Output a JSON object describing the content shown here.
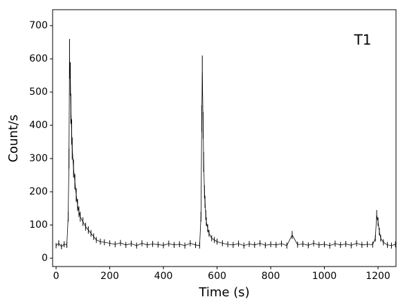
{
  "chart_data": {
    "type": "errorbar",
    "annotation": "T1",
    "xlabel": "Time (s)",
    "ylabel": "Count/s",
    "x": [
      0,
      10,
      20,
      30,
      40,
      45,
      48,
      50,
      53,
      55,
      58,
      60,
      65,
      70,
      75,
      80,
      85,
      90,
      100,
      110,
      120,
      130,
      140,
      150,
      165,
      180,
      200,
      220,
      240,
      260,
      280,
      300,
      320,
      340,
      360,
      380,
      400,
      420,
      440,
      460,
      480,
      500,
      520,
      535,
      540,
      543,
      545,
      548,
      550,
      553,
      555,
      558,
      560,
      565,
      570,
      580,
      590,
      600,
      620,
      640,
      660,
      680,
      700,
      720,
      740,
      760,
      780,
      800,
      820,
      840,
      860,
      880,
      900,
      920,
      940,
      960,
      980,
      1000,
      1020,
      1040,
      1060,
      1080,
      1100,
      1120,
      1140,
      1160,
      1180,
      1190,
      1195,
      1200,
      1205,
      1210,
      1220,
      1235,
      1250,
      1265
    ],
    "values": [
      38,
      45,
      35,
      42,
      40,
      125,
      300,
      600,
      540,
      450,
      380,
      330,
      270,
      230,
      190,
      160,
      140,
      125,
      110,
      95,
      85,
      75,
      65,
      55,
      50,
      48,
      45,
      42,
      46,
      40,
      44,
      38,
      45,
      40,
      43,
      41,
      39,
      44,
      40,
      42,
      38,
      45,
      40,
      38,
      125,
      420,
      560,
      400,
      290,
      200,
      170,
      130,
      110,
      90,
      75,
      60,
      55,
      50,
      45,
      42,
      40,
      44,
      38,
      43,
      40,
      45,
      39,
      42,
      40,
      44,
      38,
      70,
      41,
      43,
      39,
      45,
      40,
      42,
      38,
      44,
      40,
      43,
      39,
      45,
      40,
      42,
      41,
      60,
      130,
      110,
      80,
      60,
      48,
      40,
      38,
      42
    ],
    "errors": [
      8,
      9,
      8,
      9,
      9,
      15,
      30,
      60,
      50,
      45,
      38,
      33,
      27,
      23,
      20,
      18,
      16,
      15,
      13,
      12,
      11,
      10,
      10,
      9,
      9,
      9,
      9,
      9,
      9,
      9,
      9,
      9,
      9,
      9,
      9,
      9,
      9,
      9,
      9,
      9,
      9,
      9,
      9,
      9,
      15,
      40,
      50,
      40,
      30,
      20,
      18,
      15,
      13,
      12,
      10,
      9,
      9,
      9,
      9,
      9,
      9,
      9,
      9,
      9,
      9,
      9,
      9,
      9,
      9,
      9,
      9,
      12,
      9,
      9,
      9,
      9,
      9,
      9,
      9,
      9,
      9,
      9,
      9,
      9,
      9,
      9,
      9,
      10,
      15,
      13,
      11,
      10,
      9,
      9,
      9,
      9
    ],
    "color": "#000000",
    "xlim": [
      -13,
      1267
    ],
    "ylim": [
      -25,
      748
    ],
    "xticks": [
      0,
      200,
      400,
      600,
      800,
      1000,
      1200
    ],
    "yticks": [
      0,
      100,
      200,
      300,
      400,
      500,
      600,
      700
    ]
  }
}
